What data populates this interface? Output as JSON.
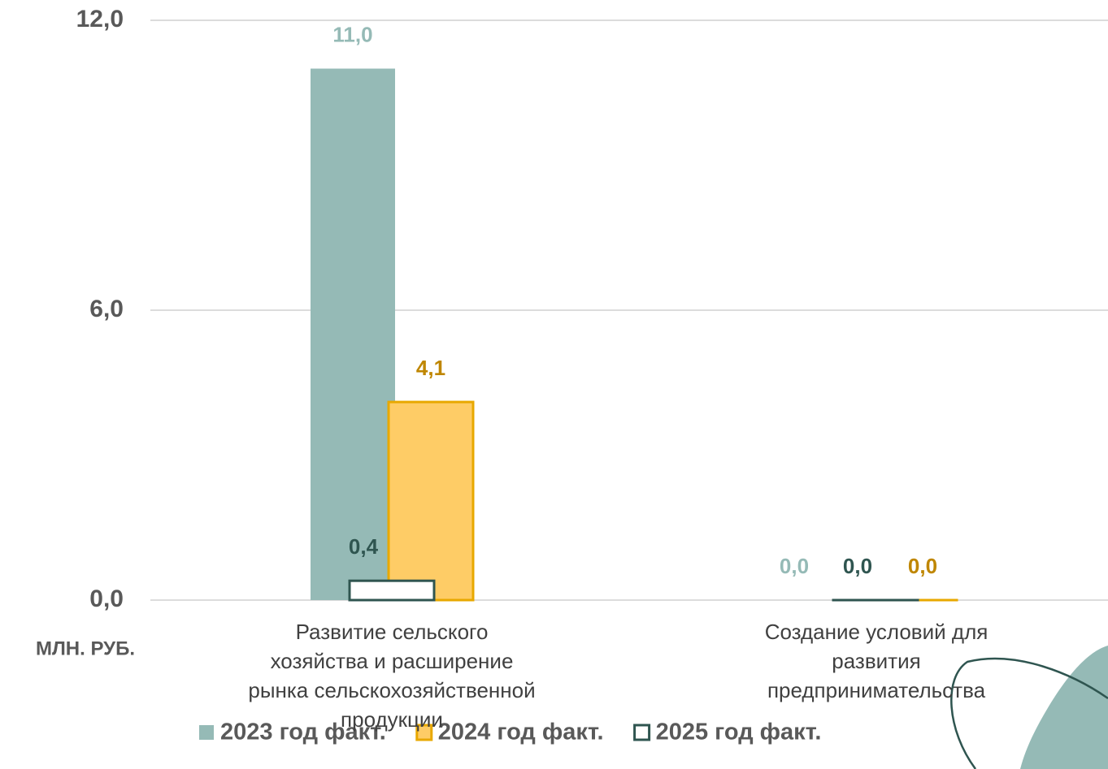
{
  "chart_data": {
    "type": "bar",
    "y_axis_label": "МЛН. РУБ.",
    "categories": [
      "Развитие сельского хозяйства и расширение рынка сельскохозяйственной продукции",
      "Создание условий для развития предпринимательства"
    ],
    "series": [
      {
        "name": "2023 год факт.",
        "color": "#95bab6",
        "label_color": "#95bab6",
        "values": [
          11.0,
          0
        ],
        "value_labels": [
          "11,0",
          "0,0"
        ]
      },
      {
        "name": "2024 год факт.",
        "color": "#fecc66",
        "stroke": "#e8a800",
        "label_color": "#bf8600",
        "values": [
          4.1,
          0
        ],
        "value_labels": [
          "4,1",
          "0,0"
        ]
      },
      {
        "name": "2025 год факт.",
        "color": "#ffffff",
        "stroke": "#2f5550",
        "label_color": "#2f5550",
        "values": [
          0.4,
          0
        ],
        "value_labels": [
          "0,4",
          "0,0"
        ]
      }
    ],
    "ylim": [
      0,
      12
    ],
    "yticks": [
      {
        "value": 0,
        "label": "0,0"
      },
      {
        "value": 6,
        "label": "6,0"
      },
      {
        "value": 12,
        "label": "12,0"
      }
    ],
    "grid": true
  }
}
